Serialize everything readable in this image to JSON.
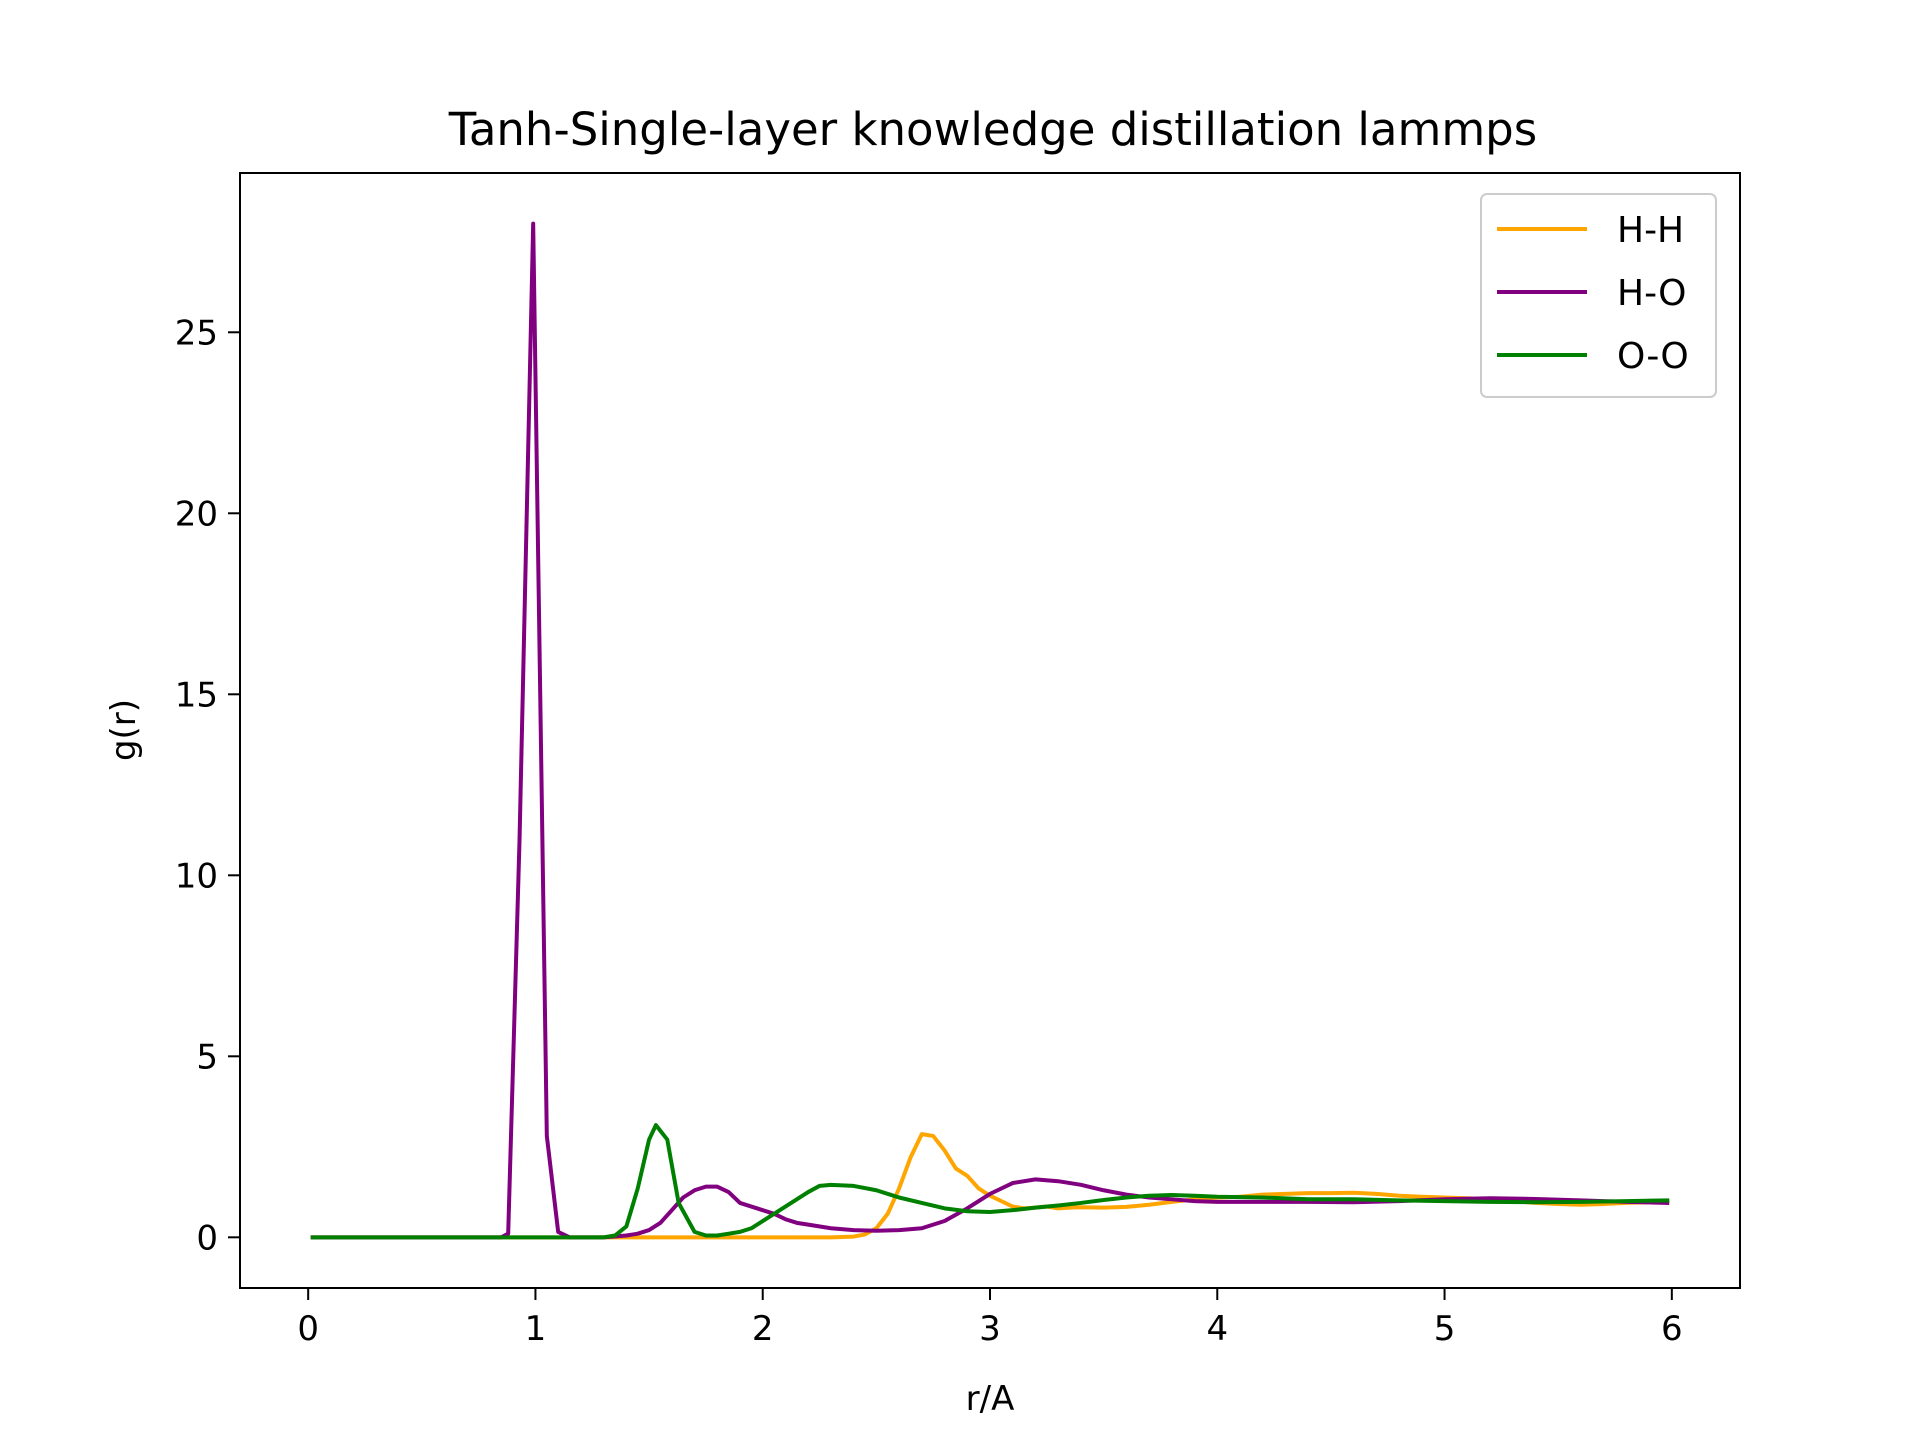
{
  "chart_data": {
    "type": "line",
    "title": "Tanh-Single-layer knowledge distillation lammps",
    "xlabel": "r/A",
    "ylabel": "g(r)",
    "xlim": [
      -0.3,
      6.3
    ],
    "ylim": [
      -1.4,
      29.4
    ],
    "xticks": [
      0,
      1,
      2,
      3,
      4,
      5,
      6
    ],
    "yticks": [
      0,
      5,
      10,
      15,
      20,
      25
    ],
    "legend_position": "top-right",
    "grid": false,
    "series": [
      {
        "name": "H-H",
        "color": "#ffa500",
        "x": [
          0.02,
          0.5,
          1.0,
          1.5,
          2.0,
          2.3,
          2.4,
          2.45,
          2.5,
          2.55,
          2.6,
          2.65,
          2.7,
          2.75,
          2.8,
          2.85,
          2.9,
          2.95,
          3.0,
          3.05,
          3.1,
          3.15,
          3.2,
          3.25,
          3.3,
          3.35,
          3.4,
          3.5,
          3.6,
          3.7,
          3.8,
          3.9,
          4.0,
          4.1,
          4.2,
          4.3,
          4.4,
          4.5,
          4.6,
          4.7,
          4.8,
          4.9,
          5.0,
          5.1,
          5.2,
          5.3,
          5.4,
          5.5,
          5.6,
          5.7,
          5.8,
          5.9,
          5.98
        ],
        "y": [
          0,
          0,
          0,
          0,
          0,
          0,
          0.02,
          0.08,
          0.25,
          0.65,
          1.35,
          2.2,
          2.85,
          2.8,
          2.4,
          1.9,
          1.7,
          1.35,
          1.15,
          1.0,
          0.85,
          0.8,
          0.82,
          0.85,
          0.8,
          0.82,
          0.83,
          0.82,
          0.84,
          0.9,
          0.98,
          1.05,
          1.1,
          1.12,
          1.18,
          1.2,
          1.22,
          1.22,
          1.23,
          1.2,
          1.15,
          1.12,
          1.1,
          1.08,
          1.05,
          1.0,
          0.95,
          0.92,
          0.9,
          0.92,
          0.95,
          0.97,
          1.0
        ]
      },
      {
        "name": "H-O",
        "color": "#800080",
        "x": [
          0.02,
          0.5,
          0.85,
          0.88,
          0.93,
          0.99,
          1.05,
          1.1,
          1.15,
          1.3,
          1.4,
          1.45,
          1.5,
          1.55,
          1.6,
          1.65,
          1.7,
          1.75,
          1.8,
          1.85,
          1.9,
          1.95,
          2.0,
          2.05,
          2.1,
          2.15,
          2.2,
          2.3,
          2.4,
          2.5,
          2.6,
          2.7,
          2.8,
          2.9,
          3.0,
          3.1,
          3.2,
          3.3,
          3.4,
          3.5,
          3.6,
          3.7,
          3.8,
          3.9,
          4.0,
          4.2,
          4.4,
          4.6,
          4.8,
          5.0,
          5.2,
          5.4,
          5.6,
          5.8,
          5.98
        ],
        "y": [
          0,
          0,
          0,
          0.1,
          11.0,
          28.0,
          2.8,
          0.15,
          0.0,
          0.0,
          0.05,
          0.1,
          0.2,
          0.4,
          0.75,
          1.1,
          1.3,
          1.4,
          1.4,
          1.25,
          0.95,
          0.85,
          0.75,
          0.65,
          0.5,
          0.4,
          0.35,
          0.25,
          0.2,
          0.18,
          0.2,
          0.25,
          0.45,
          0.8,
          1.2,
          1.5,
          1.6,
          1.55,
          1.45,
          1.3,
          1.18,
          1.1,
          1.05,
          1.0,
          0.98,
          0.98,
          0.98,
          0.97,
          1.0,
          1.05,
          1.08,
          1.06,
          1.02,
          0.98,
          0.95
        ]
      },
      {
        "name": "O-O",
        "color": "#008000",
        "x": [
          0.02,
          0.5,
          1.0,
          1.3,
          1.35,
          1.4,
          1.45,
          1.5,
          1.53,
          1.58,
          1.63,
          1.7,
          1.75,
          1.8,
          1.85,
          1.9,
          1.95,
          2.0,
          2.05,
          2.1,
          2.15,
          2.2,
          2.25,
          2.3,
          2.4,
          2.5,
          2.6,
          2.7,
          2.8,
          2.9,
          3.0,
          3.1,
          3.2,
          3.3,
          3.4,
          3.5,
          3.6,
          3.7,
          3.8,
          3.9,
          4.0,
          4.2,
          4.4,
          4.6,
          4.8,
          5.0,
          5.2,
          5.4,
          5.6,
          5.8,
          5.98
        ],
        "y": [
          0,
          0,
          0,
          0.0,
          0.05,
          0.3,
          1.35,
          2.7,
          3.1,
          2.7,
          0.95,
          0.15,
          0.05,
          0.05,
          0.1,
          0.15,
          0.25,
          0.45,
          0.65,
          0.85,
          1.05,
          1.25,
          1.42,
          1.45,
          1.42,
          1.3,
          1.1,
          0.95,
          0.8,
          0.72,
          0.7,
          0.75,
          0.82,
          0.88,
          0.95,
          1.03,
          1.1,
          1.15,
          1.17,
          1.15,
          1.12,
          1.1,
          1.05,
          1.05,
          1.02,
          1.0,
          0.98,
          0.97,
          0.98,
          1.0,
          1.02
        ]
      }
    ]
  }
}
